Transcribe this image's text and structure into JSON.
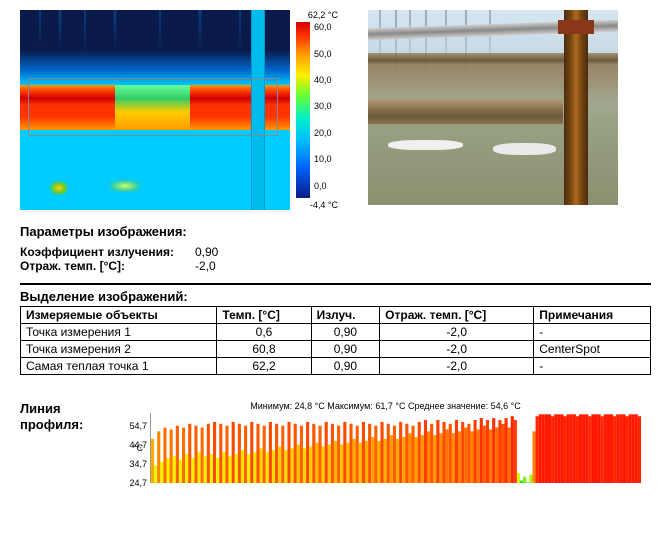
{
  "colorbar": {
    "top_label": "62,2 °C",
    "bottom_label": "-4,4 °C",
    "gradient_stops": [
      {
        "pct": 0,
        "color": "#d40000"
      },
      {
        "pct": 8,
        "color": "#ff3300"
      },
      {
        "pct": 18,
        "color": "#ff9900"
      },
      {
        "pct": 30,
        "color": "#ffee00"
      },
      {
        "pct": 42,
        "color": "#66ff33"
      },
      {
        "pct": 55,
        "color": "#00eecc"
      },
      {
        "pct": 68,
        "color": "#00bbff"
      },
      {
        "pct": 82,
        "color": "#0066ff"
      },
      {
        "pct": 100,
        "color": "#0a1a88"
      }
    ],
    "ticks": [
      {
        "label": "60,0",
        "pos_pct": 3
      },
      {
        "label": "50,0",
        "pos_pct": 18
      },
      {
        "label": "40,0",
        "pos_pct": 33
      },
      {
        "label": "30,0",
        "pos_pct": 48
      },
      {
        "label": "20,0",
        "pos_pct": 63
      },
      {
        "label": "10,0",
        "pos_pct": 78
      },
      {
        "label": "0,0",
        "pos_pct": 93
      }
    ]
  },
  "params": {
    "title": "Параметры изображения:",
    "rows": [
      {
        "label": "Коэффициент излучения:",
        "value": "0,90"
      },
      {
        "label": "Отраж. темп. [°C]:",
        "value": "-2,0"
      }
    ]
  },
  "table": {
    "title": "Выделение изображений:",
    "columns": [
      "Измеряемые объекты",
      "Темп. [°C]",
      "Излуч.",
      "Отраж. темп. [°C]",
      "Примечания"
    ],
    "rows": [
      [
        "Точка измерения 1",
        "0,6",
        "0,90",
        "-2,0",
        "-"
      ],
      [
        "Точка измерения 2",
        "60,8",
        "0,90",
        "-2,0",
        "CenterSpot"
      ],
      [
        "Самая теплая точка 1",
        "62,2",
        "0,90",
        "-2,0",
        "-"
      ]
    ],
    "align": [
      "left",
      "center",
      "center",
      "center",
      "left"
    ]
  },
  "profile": {
    "label_line1": "Линия",
    "label_line2": "профиля:",
    "header": "Минимум: 24,8 °C Максимум: 61,7 °C Среднее значение: 54,6 °C",
    "y_unit": "°C",
    "y_min": 24.7,
    "y_max": 61.7,
    "y_ticks": [
      {
        "v": 54.7,
        "label": "54,7"
      },
      {
        "v": 44.7,
        "label": "44,7"
      },
      {
        "v": 34.7,
        "label": "34,7"
      },
      {
        "v": 24.7,
        "label": "24,7"
      }
    ],
    "values": [
      48,
      34,
      52,
      36,
      54,
      38,
      53,
      39,
      55,
      37,
      54,
      40,
      56,
      38,
      55,
      41,
      54,
      39,
      56,
      40,
      57,
      38,
      56,
      41,
      55,
      39,
      57,
      40,
      56,
      42,
      55,
      40,
      57,
      41,
      56,
      43,
      55,
      41,
      57,
      42,
      56,
      44,
      55,
      42,
      57,
      43,
      56,
      45,
      55,
      43,
      57,
      44,
      56,
      46,
      55,
      44,
      57,
      45,
      56,
      47,
      55,
      45,
      57,
      46,
      56,
      48,
      55,
      46,
      57,
      47,
      56,
      49,
      55,
      47,
      57,
      48,
      56,
      50,
      55,
      48,
      57,
      49,
      56,
      51,
      55,
      49,
      57,
      50,
      58,
      52,
      56,
      50,
      58,
      51,
      57,
      53,
      56,
      51,
      58,
      52,
      57,
      54,
      56,
      52,
      58,
      53,
      59,
      55,
      58,
      53,
      59,
      54,
      58,
      56,
      59,
      54,
      60,
      58,
      30,
      26,
      28,
      25,
      29,
      52,
      60,
      61,
      61,
      61,
      61,
      60,
      61,
      61,
      61,
      60,
      61,
      61,
      61,
      60,
      61,
      61,
      61,
      60,
      61,
      61,
      61,
      60,
      61,
      61,
      61,
      60,
      61,
      61,
      61,
      60,
      61,
      61,
      61,
      60
    ],
    "thermal_stops": [
      {
        "t": 24.7,
        "color": "#00cc44"
      },
      {
        "t": 30,
        "color": "#ccff00"
      },
      {
        "t": 40,
        "color": "#ffee00"
      },
      {
        "t": 50,
        "color": "#ff9900"
      },
      {
        "t": 56,
        "color": "#ff5500"
      },
      {
        "t": 61.7,
        "color": "#ff1100"
      }
    ]
  }
}
